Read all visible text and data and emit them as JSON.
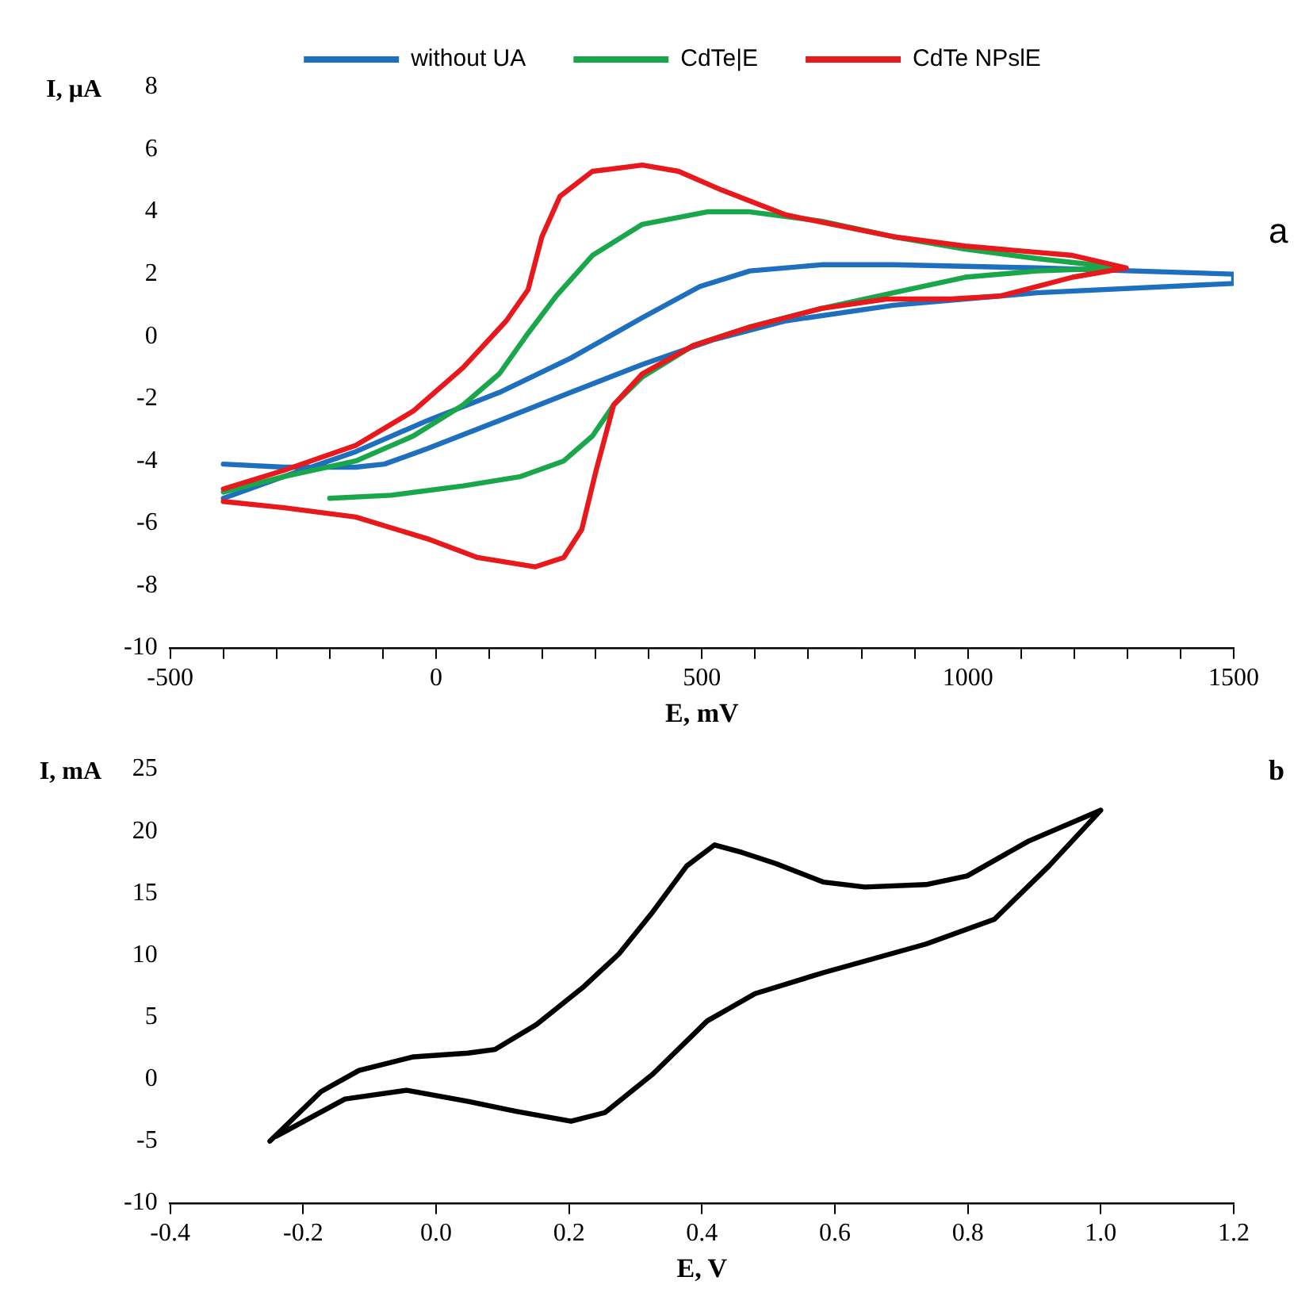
{
  "chart_data": [
    {
      "type": "line",
      "xlabel": "E, mV",
      "ylabel": "I, μA",
      "annotations": [
        "a"
      ],
      "legend": "top",
      "marker": "none",
      "line_style": "solid",
      "xlim": [
        -500,
        1500
      ],
      "xticks": [
        -500,
        {
          "value": -400,
          "label": null
        },
        {
          "value": -300,
          "label": null
        },
        {
          "value": -200,
          "label": null
        },
        {
          "value": -100,
          "label": null
        },
        0,
        {
          "value": 100,
          "label": null
        },
        {
          "value": 200,
          "label": null
        },
        {
          "value": 300,
          "label": null
        },
        {
          "value": 400,
          "label": null
        },
        500,
        {
          "value": 600,
          "label": null
        },
        {
          "value": 700,
          "label": null
        },
        {
          "value": 800,
          "label": null
        },
        {
          "value": 900,
          "label": null
        },
        1000,
        {
          "value": 1100,
          "label": null
        },
        {
          "value": 1200,
          "label": null
        },
        {
          "value": 1300,
          "label": null
        },
        {
          "value": 1400,
          "label": null
        },
        1500
      ],
      "ylim": [
        -10,
        8
      ],
      "yticks": [
        -10,
        -8,
        -6,
        -4,
        -2,
        0,
        2,
        4,
        6,
        8
      ],
      "series": [
        {
          "name": "without UA",
          "color": "#1f6fbf",
          "x": [
            -400,
            -286,
            -151,
            -16,
            119,
            253,
            388,
            496,
            590,
            725,
            860,
            1130,
            1500,
            1500,
            1130,
            860,
            658,
            523,
            388,
            253,
            119,
            -16,
            -97,
            -151,
            -286,
            -400
          ],
          "values": [
            -5.2,
            -4.5,
            -3.7,
            -2.7,
            -1.8,
            -0.7,
            0.6,
            1.6,
            2.1,
            2.3,
            2.3,
            2.2,
            2.0,
            1.7,
            1.4,
            1.0,
            0.5,
            -0.1,
            -0.9,
            -1.8,
            -2.7,
            -3.6,
            -4.1,
            -4.2,
            -4.2,
            -4.1
          ]
        },
        {
          "name": "CdTe|E",
          "color": "#1aa64a",
          "x": [
            -200,
            -84,
            51,
            159,
            240,
            294,
            334,
            388,
            483,
            590,
            725,
            860,
            995,
            1130,
            1290,
            1130,
            995,
            860,
            725,
            590,
            510,
            388,
            294,
            226,
            173,
            119,
            51,
            -43,
            -151,
            -286,
            -400
          ],
          "values": [
            -5.2,
            -5.1,
            -4.8,
            -4.5,
            -4.0,
            -3.2,
            -2.2,
            -1.3,
            -0.3,
            0.3,
            0.9,
            1.4,
            1.9,
            2.1,
            2.2,
            2.5,
            2.8,
            3.2,
            3.7,
            4.0,
            4.0,
            3.6,
            2.6,
            1.3,
            0.1,
            -1.2,
            -2.2,
            -3.2,
            -4.0,
            -4.5,
            -5.0
          ]
        },
        {
          "name": "CdTe NPslE",
          "color": "#e8191c",
          "x": [
            -400,
            -286,
            -151,
            -16,
            78,
            186,
            240,
            274,
            301,
            334,
            388,
            483,
            590,
            725,
            847,
            968,
            1062,
            1197,
            1298,
            1197,
            995,
            860,
            658,
            537,
            456,
            388,
            294,
            233,
            199,
            173,
            132,
            51,
            -43,
            -151,
            -286,
            -400
          ],
          "values": [
            -5.3,
            -5.5,
            -5.8,
            -6.5,
            -7.1,
            -7.4,
            -7.1,
            -6.2,
            -4.3,
            -2.2,
            -1.2,
            -0.3,
            0.3,
            0.9,
            1.2,
            1.2,
            1.3,
            1.9,
            2.2,
            2.6,
            2.9,
            3.2,
            3.9,
            4.7,
            5.3,
            5.5,
            5.3,
            4.5,
            3.2,
            1.5,
            0.5,
            -1.0,
            -2.4,
            -3.5,
            -4.3,
            -4.9
          ]
        }
      ]
    },
    {
      "type": "line",
      "xlabel": "E, V",
      "ylabel": "I, mA",
      "annotations": [
        "b"
      ],
      "marker": "none",
      "line_style": "solid",
      "xlim": [
        -0.4,
        1.2
      ],
      "xticks": [
        -0.4,
        -0.2,
        {
          "value": 0,
          "label": "0.0"
        },
        0.2,
        0.4,
        0.6,
        0.8,
        {
          "value": 1,
          "label": "1.0"
        },
        1.2
      ],
      "ylim": [
        -10,
        25
      ],
      "yticks": [
        -10,
        -5,
        0,
        5,
        10,
        15,
        20,
        25
      ],
      "series": [
        {
          "color": "#000000",
          "x": [
            -0.25,
            -0.173,
            -0.116,
            -0.034,
            0.048,
            0.089,
            0.151,
            0.223,
            0.275,
            0.326,
            0.377,
            0.419,
            0.46,
            0.511,
            0.583,
            0.645,
            0.737,
            0.799,
            0.891,
            1.0,
            0.922,
            0.84,
            0.737,
            0.583,
            0.48,
            0.408,
            0.326,
            0.254,
            0.203,
            0.12,
            0.048,
            -0.044,
            -0.137,
            -0.24
          ],
          "values": [
            -5.0,
            -1.0,
            0.7,
            1.8,
            2.1,
            2.4,
            4.4,
            7.5,
            10.1,
            13.5,
            17.2,
            18.9,
            18.3,
            17.4,
            15.9,
            15.5,
            15.7,
            16.4,
            19.2,
            21.7,
            17.2,
            12.9,
            10.9,
            8.6,
            6.9,
            4.7,
            0.4,
            -2.7,
            -3.4,
            -2.6,
            -1.8,
            -0.9,
            -1.6,
            -4.6
          ]
        }
      ]
    }
  ]
}
